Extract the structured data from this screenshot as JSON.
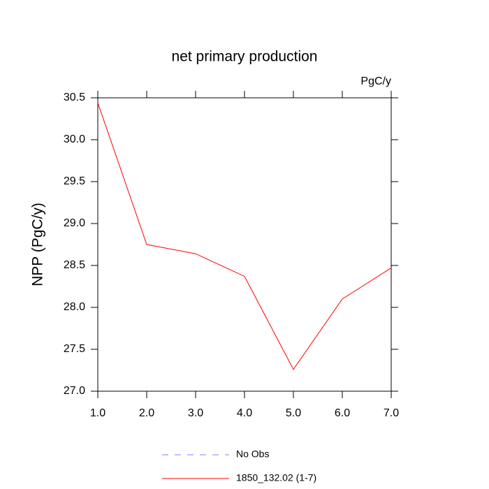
{
  "chart_data": {
    "type": "line",
    "title": "net primary production",
    "units": "PgC/y",
    "y_label": "NPP  (PgC/y)",
    "x": [
      1,
      2,
      3,
      4,
      5,
      6,
      7
    ],
    "series": [
      {
        "name": "No Obs",
        "color": "#8080ff",
        "dashed": true,
        "values": [
          null,
          null,
          null,
          null,
          null,
          null,
          null
        ]
      },
      {
        "name": "1850_132.02 (1-7)",
        "color": "#ff0000",
        "dashed": false,
        "values": [
          30.44,
          28.75,
          28.64,
          28.37,
          27.26,
          28.1,
          28.47
        ]
      }
    ],
    "xlim": [
      1,
      7
    ],
    "xticks": [
      {
        "value": 1,
        "label": "1.0"
      },
      {
        "value": 2,
        "label": "2.0"
      },
      {
        "value": 3,
        "label": "3.0"
      },
      {
        "value": 4,
        "label": "4.0"
      },
      {
        "value": 5,
        "label": "5.0"
      },
      {
        "value": 6,
        "label": "6.0"
      },
      {
        "value": 7,
        "label": "7.0"
      }
    ],
    "ylim": [
      27,
      30.5
    ],
    "yticks": [
      {
        "value": 27,
        "label": "27.0"
      },
      27.5,
      {
        "value": 28,
        "label": "28.0"
      },
      28.5,
      {
        "value": 29,
        "label": "29.0"
      },
      29.5,
      {
        "value": 30,
        "label": "30.0"
      },
      30.5
    ],
    "grid": false
  }
}
